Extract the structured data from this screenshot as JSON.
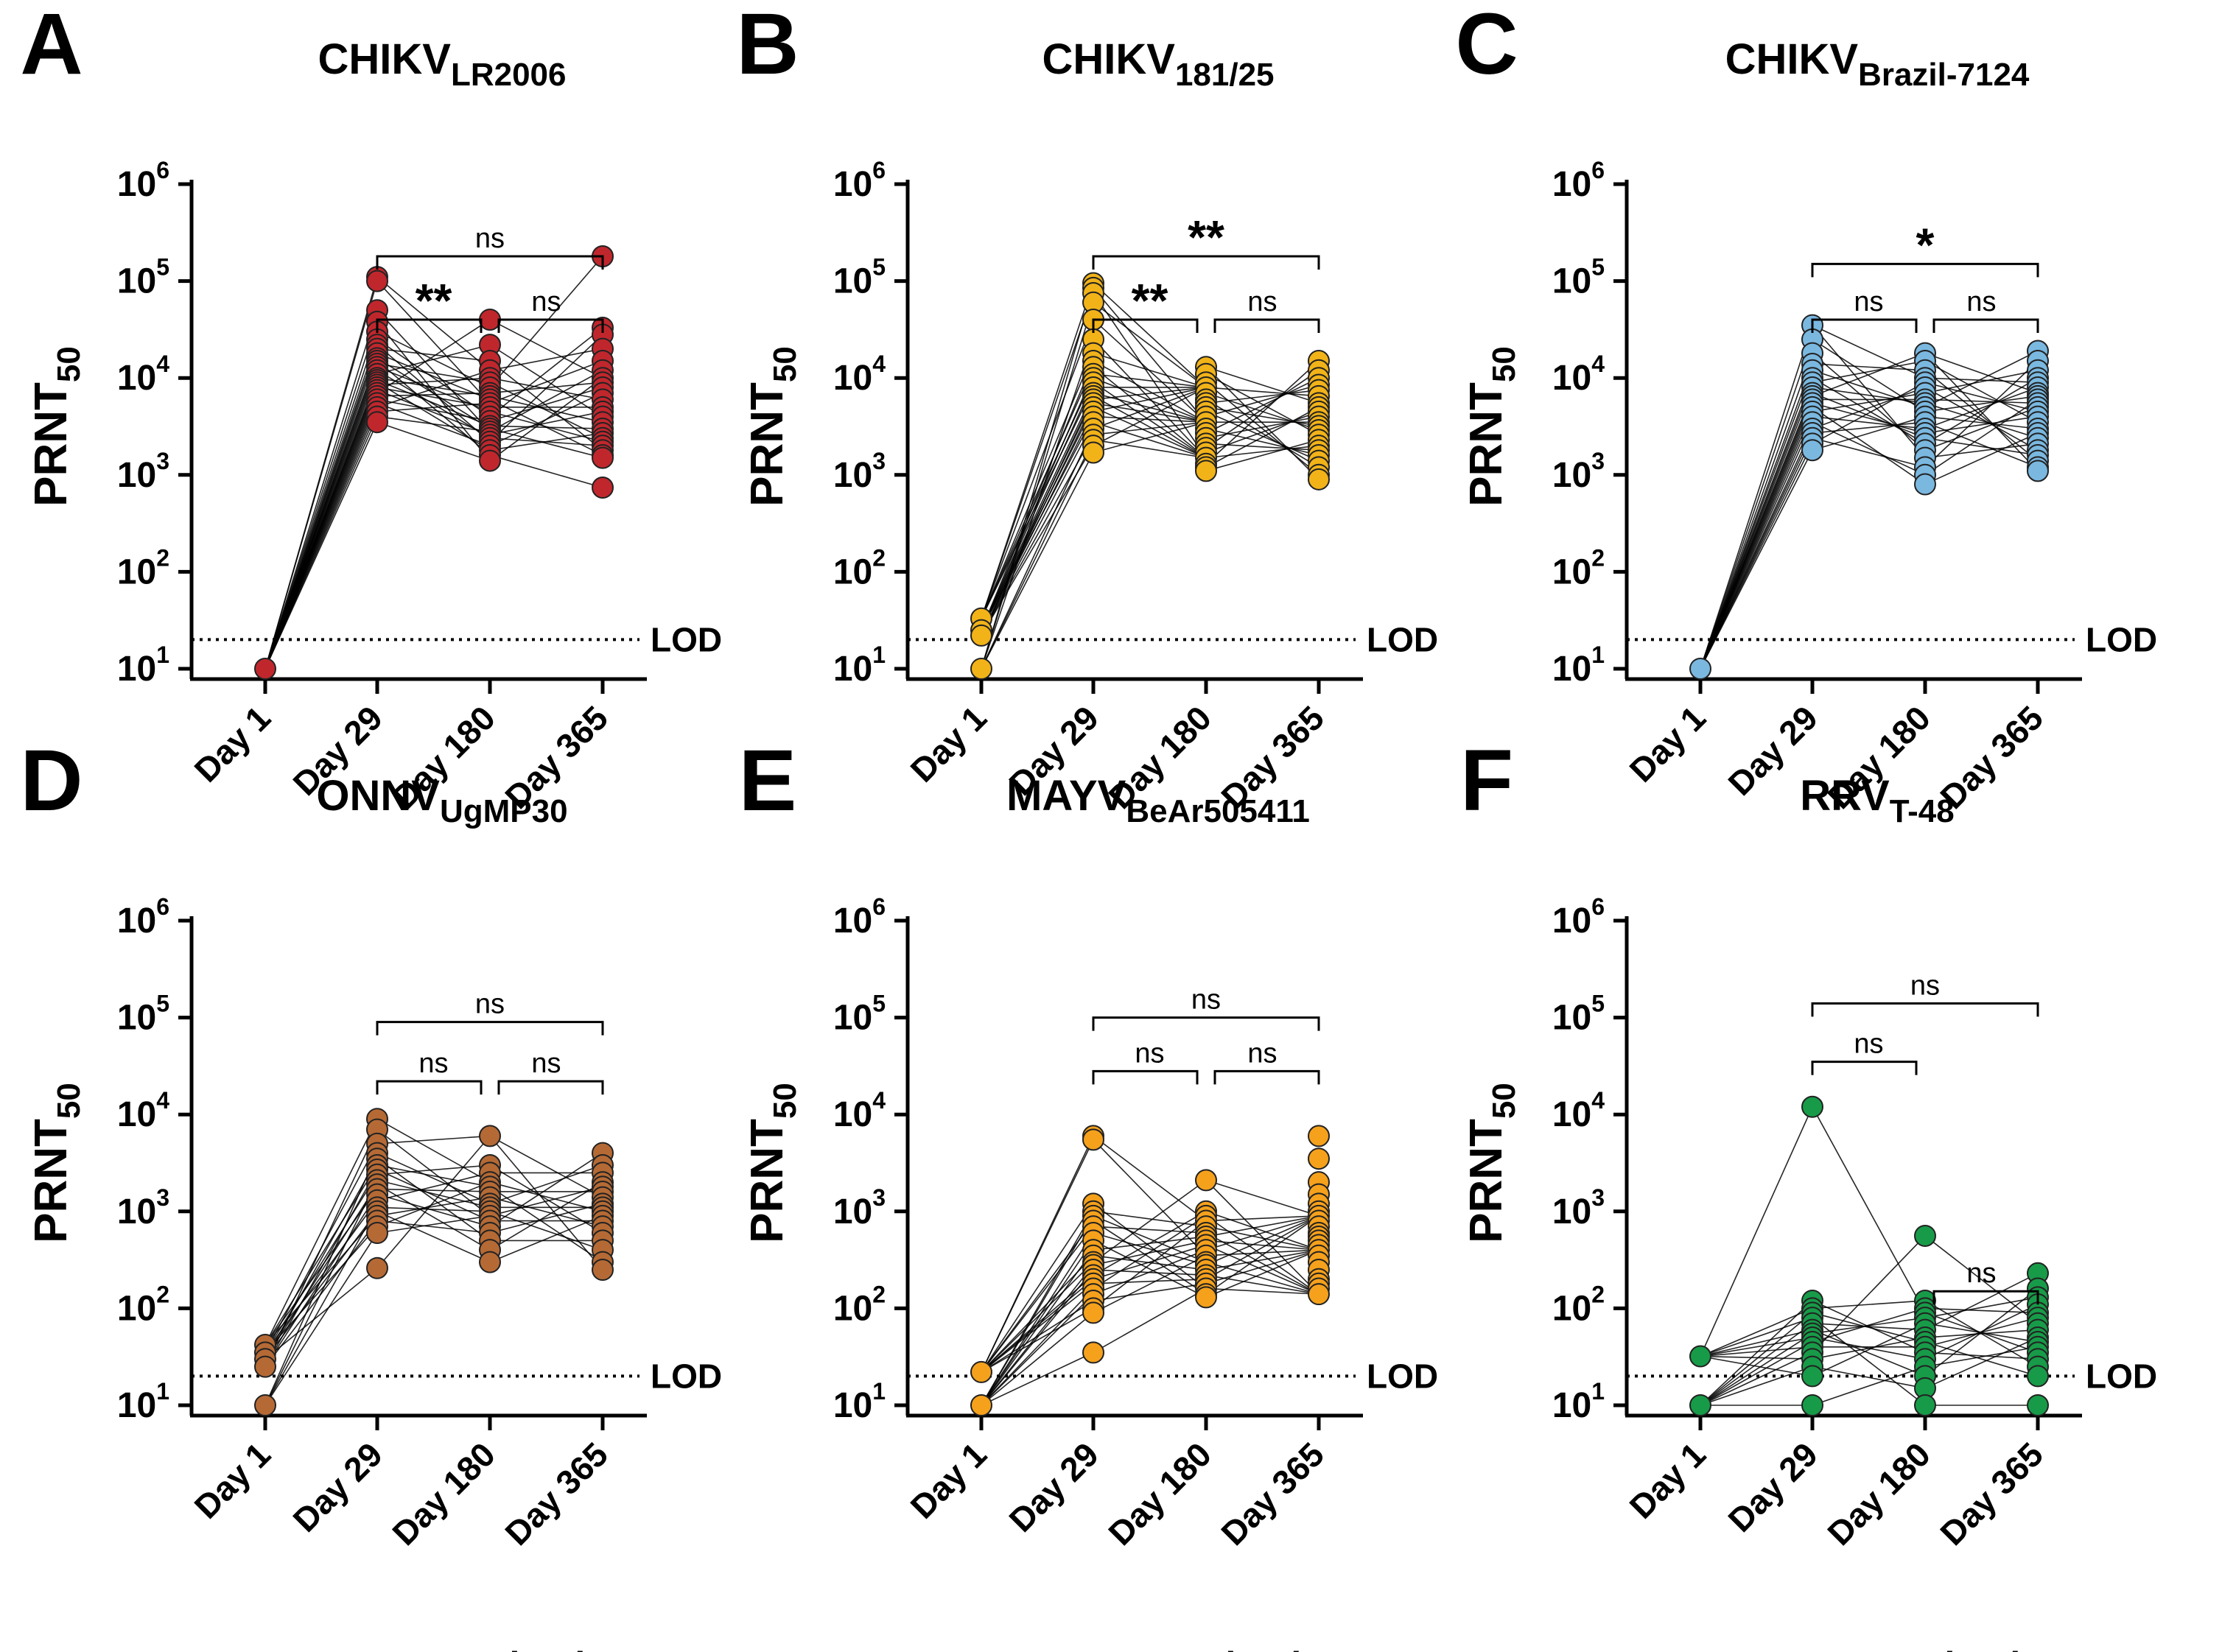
{
  "figure": {
    "xaxis_title": "Days post-vaccination",
    "lod_label": "LOD",
    "ylabel_main": "PRNT",
    "ylabel_sub": "50",
    "tick_base": "10",
    "ytick_exponents": [
      "1",
      "2",
      "3",
      "4",
      "5",
      "6"
    ],
    "timepoints": [
      "Day 1",
      "Day 29",
      "Day 180",
      "Day 365"
    ]
  },
  "chart_data": [
    {
      "panel": "A",
      "type": "scatter",
      "title_main": "CHIKV",
      "title_sub": "LR2006",
      "color": "#c0272d",
      "categories": [
        "Day 1",
        "Day 29",
        "Day 180",
        "Day 365"
      ],
      "ylim": [
        10,
        1000000
      ],
      "yscale": "log",
      "lod": 20,
      "ylabel": "PRNT50",
      "d1": [
        10
      ],
      "d29": [
        110000,
        100000,
        50000,
        38000,
        30000,
        25000,
        22000,
        20000,
        18000,
        16000,
        15000,
        14000,
        13000,
        12000,
        11000,
        10000,
        9500,
        9000,
        8500,
        8000,
        7500,
        7000,
        6500,
        6000,
        5500,
        5000,
        4500,
        4000,
        3500
      ],
      "d180": [
        40000,
        22000,
        15000,
        12000,
        10000,
        9000,
        8000,
        7000,
        6500,
        6000,
        5500,
        5000,
        4500,
        4000,
        3600,
        3200,
        3000,
        2800,
        2600,
        2400,
        2200,
        2000,
        1800,
        1600,
        1400
      ],
      "d365": [
        180000,
        33000,
        28000,
        20000,
        15000,
        12000,
        10000,
        9000,
        8000,
        7000,
        6000,
        5000,
        4500,
        4000,
        3500,
        3000,
        2700,
        2400,
        2200,
        2000,
        1800,
        1600,
        1500,
        740
      ],
      "comparisons": [
        {
          "label": "ns",
          "from": 1,
          "to": 3,
          "y": 180000
        },
        {
          "label": "**",
          "from": 1,
          "to": 2,
          "y": 40000
        },
        {
          "label": "ns",
          "from": 2,
          "to": 3,
          "y": 40000
        }
      ]
    },
    {
      "panel": "B",
      "type": "scatter",
      "title_main": "CHIKV",
      "title_sub": "181/25",
      "color": "#f2b319",
      "categories": [
        "Day 1",
        "Day 29",
        "Day 180",
        "Day 365"
      ],
      "ylim": [
        10,
        1000000
      ],
      "yscale": "log",
      "lod": 20,
      "ylabel": "PRNT50",
      "d1": [
        33,
        25,
        22,
        10
      ],
      "d29": [
        95000,
        85000,
        75000,
        60000,
        40000,
        25000,
        18000,
        15000,
        13000,
        11000,
        10000,
        9000,
        8000,
        7000,
        6500,
        6000,
        5500,
        5000,
        4500,
        4000,
        3500,
        3000,
        2600,
        2300,
        2000,
        1700
      ],
      "d180": [
        13000,
        11000,
        9000,
        8000,
        7000,
        6000,
        5500,
        5000,
        4500,
        4000,
        3500,
        3000,
        2700,
        2400,
        2100,
        1900,
        1700,
        1500,
        1300,
        1200,
        1100
      ],
      "d365": [
        15000,
        12000,
        10000,
        8500,
        7500,
        6500,
        5500,
        5000,
        4500,
        4000,
        3500,
        3200,
        2900,
        2600,
        2300,
        2000,
        1800,
        1600,
        1400,
        1200,
        1000,
        900
      ],
      "comparisons": [
        {
          "label": "**",
          "from": 1,
          "to": 3,
          "y": 180000
        },
        {
          "label": "**",
          "from": 1,
          "to": 2,
          "y": 40000
        },
        {
          "label": "ns",
          "from": 2,
          "to": 3,
          "y": 40000
        }
      ]
    },
    {
      "panel": "C",
      "type": "scatter",
      "title_main": "CHIKV",
      "title_sub": "Brazil-7124",
      "color": "#7ab8e0",
      "categories": [
        "Day 1",
        "Day 29",
        "Day 180",
        "Day 365"
      ],
      "ylim": [
        10,
        1000000
      ],
      "yscale": "log",
      "lod": 20,
      "ylabel": "PRNT50",
      "d1": [
        10
      ],
      "d29": [
        35000,
        25000,
        18000,
        14000,
        12000,
        10000,
        9000,
        8000,
        7000,
        6500,
        6000,
        5500,
        5000,
        4500,
        4000,
        3500,
        3000,
        2700,
        2400,
        2100,
        1800
      ],
      "d180": [
        18000,
        15000,
        12000,
        10000,
        9000,
        8000,
        7000,
        6000,
        5500,
        5000,
        4500,
        4000,
        3500,
        3000,
        2700,
        2400,
        2100,
        1800,
        1500,
        1200,
        1000,
        800
      ],
      "d365": [
        19000,
        15000,
        12000,
        10000,
        9000,
        8000,
        7000,
        6500,
        6000,
        5500,
        5000,
        4500,
        4000,
        3500,
        3000,
        2700,
        2400,
        2100,
        1800,
        1600,
        1400,
        1200,
        1100
      ],
      "comparisons": [
        {
          "label": "*",
          "from": 1,
          "to": 3,
          "y": 150000
        },
        {
          "label": "ns",
          "from": 1,
          "to": 2,
          "y": 40000
        },
        {
          "label": "ns",
          "from": 2,
          "to": 3,
          "y": 40000
        }
      ]
    },
    {
      "panel": "D",
      "type": "scatter",
      "title_main": "ONNV",
      "title_sub": "UgMP30",
      "color": "#b56a35",
      "categories": [
        "Day 1",
        "Day 29",
        "Day 180",
        "Day 365"
      ],
      "ylim": [
        10,
        1000000
      ],
      "yscale": "log",
      "lod": 20,
      "ylabel": "PRNT50",
      "d1": [
        42,
        35,
        30,
        25,
        10
      ],
      "d29": [
        9000,
        7000,
        5000,
        4000,
        3500,
        3000,
        2700,
        2400,
        2100,
        1900,
        1700,
        1500,
        1300,
        1100,
        1000,
        900,
        800,
        700,
        600,
        260
      ],
      "d180": [
        6000,
        3000,
        2500,
        2000,
        1800,
        1600,
        1400,
        1200,
        1100,
        1000,
        900,
        800,
        700,
        600,
        500,
        400,
        300
      ],
      "d365": [
        4000,
        3000,
        2500,
        2000,
        1800,
        1600,
        1400,
        1200,
        1100,
        1000,
        900,
        800,
        700,
        600,
        500,
        400,
        300,
        250
      ],
      "comparisons": [
        {
          "label": "ns",
          "from": 1,
          "to": 3,
          "y": 90000
        },
        {
          "label": "ns",
          "from": 1,
          "to": 2,
          "y": 22000
        },
        {
          "label": "ns",
          "from": 2,
          "to": 3,
          "y": 22000
        }
      ]
    },
    {
      "panel": "E",
      "type": "scatter",
      "title_main": "MAYV",
      "title_sub": "BeAr505411",
      "color": "#f5a11c",
      "categories": [
        "Day 1",
        "Day 29",
        "Day 180",
        "Day 365"
      ],
      "ylim": [
        10,
        1000000
      ],
      "yscale": "log",
      "lod": 20,
      "ylabel": "PRNT50",
      "d1": [
        22,
        10
      ],
      "d29": [
        6000,
        5500,
        1200,
        1000,
        900,
        800,
        700,
        600,
        500,
        400,
        350,
        300,
        280,
        250,
        220,
        200,
        180,
        160,
        140,
        120,
        100,
        90,
        35
      ],
      "d180": [
        2100,
        1000,
        900,
        800,
        700,
        600,
        550,
        500,
        450,
        400,
        350,
        300,
        280,
        250,
        220,
        200,
        180,
        160,
        140,
        130
      ],
      "d365": [
        6000,
        3500,
        2000,
        1500,
        1200,
        1000,
        900,
        800,
        700,
        600,
        550,
        500,
        450,
        400,
        350,
        300,
        250,
        200,
        180,
        160,
        140
      ],
      "comparisons": [
        {
          "label": "ns",
          "from": 1,
          "to": 3,
          "y": 100000
        },
        {
          "label": "ns",
          "from": 1,
          "to": 2,
          "y": 28000
        },
        {
          "label": "ns",
          "from": 2,
          "to": 3,
          "y": 28000
        }
      ]
    },
    {
      "panel": "F",
      "type": "scatter",
      "title_main": "RRV",
      "title_sub": "T-48",
      "color": "#179b48",
      "categories": [
        "Day 1",
        "Day 29",
        "Day 180",
        "Day 365"
      ],
      "ylim": [
        10,
        1000000
      ],
      "yscale": "log",
      "lod": 20,
      "ylabel": "PRNT50",
      "d1": [
        32,
        10
      ],
      "d29": [
        12000,
        120,
        100,
        90,
        80,
        70,
        60,
        55,
        50,
        45,
        40,
        35,
        30,
        25,
        20,
        10
      ],
      "d180": [
        560,
        120,
        100,
        90,
        80,
        70,
        60,
        50,
        45,
        40,
        35,
        30,
        25,
        20,
        15,
        10
      ],
      "d365": [
        230,
        160,
        130,
        110,
        90,
        80,
        70,
        60,
        50,
        45,
        40,
        35,
        30,
        25,
        20,
        10
      ],
      "comparisons": [
        {
          "label": "ns",
          "from": 1,
          "to": 3,
          "y": 140000
        },
        {
          "label": "ns",
          "from": 1,
          "to": 2,
          "y": 35000
        },
        {
          "label": "ns",
          "from": 2,
          "to": 3,
          "y": 150
        }
      ]
    }
  ]
}
